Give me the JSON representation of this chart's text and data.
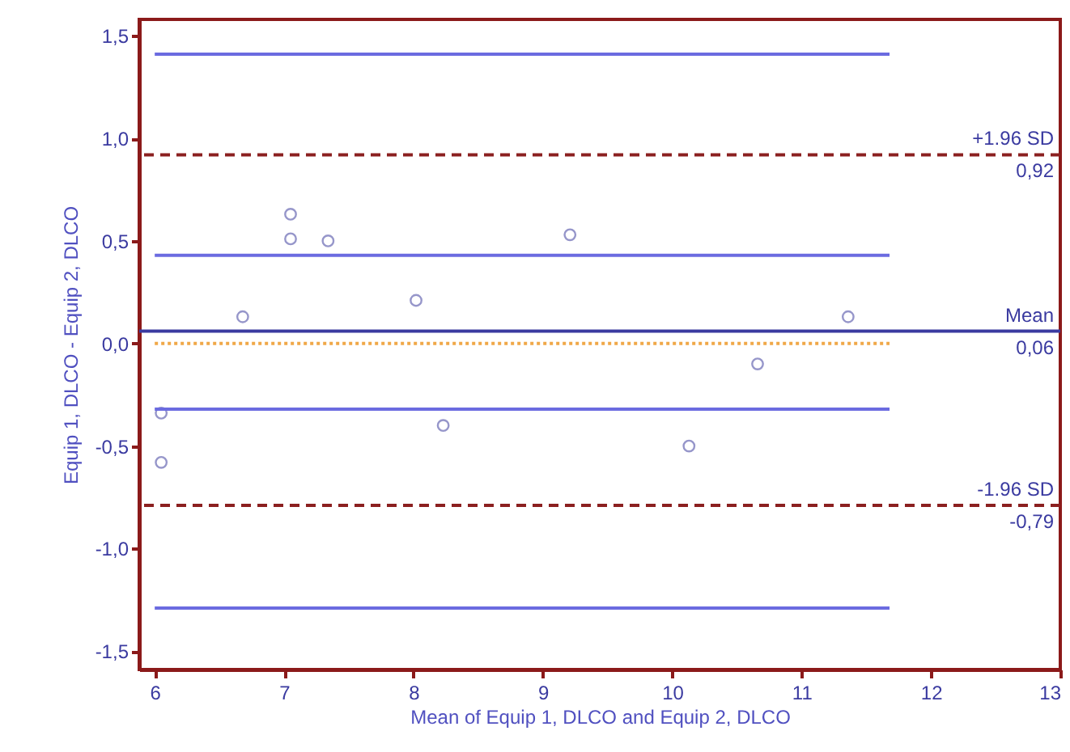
{
  "chart_data": {
    "type": "scatter",
    "xlabel": "Mean of Equip 1, DLCO and Equip 2, DLCO",
    "ylabel": "Equip 1, DLCO - Equip 2, DLCO",
    "xlim": [
      5.88,
      13
    ],
    "ylim": [
      -1.59,
      1.58
    ],
    "xticks": [
      6,
      7,
      8,
      9,
      10,
      11,
      12,
      13
    ],
    "yticks": [
      {
        "value": -1.5,
        "label": "-1,5"
      },
      {
        "value": -1,
        "label": "-1,0"
      },
      {
        "value": -0.5,
        "label": "-0,5"
      },
      {
        "value": 0,
        "label": "0,0"
      },
      {
        "value": 0.5,
        "label": "0,5"
      },
      {
        "value": 1,
        "label": "1,0"
      },
      {
        "value": 1.5,
        "label": "1,5"
      }
    ],
    "series": [
      {
        "marker": "circle",
        "color": "#6a6ab4",
        "x": [
          6.05,
          6.05,
          6.68,
          7.05,
          7.05,
          7.34,
          8.02,
          8.23,
          9.21,
          10.13,
          10.66,
          11.36
        ],
        "values": [
          -0.34,
          -0.58,
          0.13,
          0.63,
          0.51,
          0.5,
          0.21,
          -0.4,
          0.53,
          -0.5,
          -0.1,
          0.13
        ]
      },
      {
        "type": "line",
        "color": "#6b6be0",
        "line_style": "solid",
        "x": [
          6,
          11.68
        ],
        "values": [
          1.41,
          1.41
        ]
      },
      {
        "type": "line",
        "color": "#6b6be0",
        "line_style": "solid",
        "x": [
          6,
          11.68
        ],
        "values": [
          0.43,
          0.43
        ]
      },
      {
        "type": "line",
        "color": "#6b6be0",
        "line_style": "solid",
        "x": [
          6,
          11.68
        ],
        "values": [
          -0.32,
          -0.32
        ]
      },
      {
        "type": "line",
        "color": "#6b6be0",
        "line_style": "solid",
        "x": [
          6,
          11.68
        ],
        "values": [
          -1.29,
          -1.29
        ]
      },
      {
        "type": "line",
        "color": "#f0a848",
        "line_style": "dotted",
        "x": [
          6,
          11.68
        ],
        "values": [
          0,
          0
        ]
      }
    ],
    "ref_lines": [
      {
        "axis": "y",
        "value": 0.92,
        "label": "+1.96 SD",
        "color": "#8b2020",
        "line_style": "dashed"
      },
      {
        "axis": "y",
        "value": 0.06,
        "label": "Mean",
        "color": "#3a3aa0",
        "line_style": "solid"
      },
      {
        "axis": "y",
        "value": -0.79,
        "label": "-1.96 SD",
        "color": "#8b2020",
        "line_style": "dashed"
      }
    ],
    "annotations": [
      {
        "text": "0,92",
        "y": 0.92
      },
      {
        "text": "0,06",
        "y": 0.06
      },
      {
        "text": "-0,79",
        "y": -0.79
      }
    ]
  }
}
